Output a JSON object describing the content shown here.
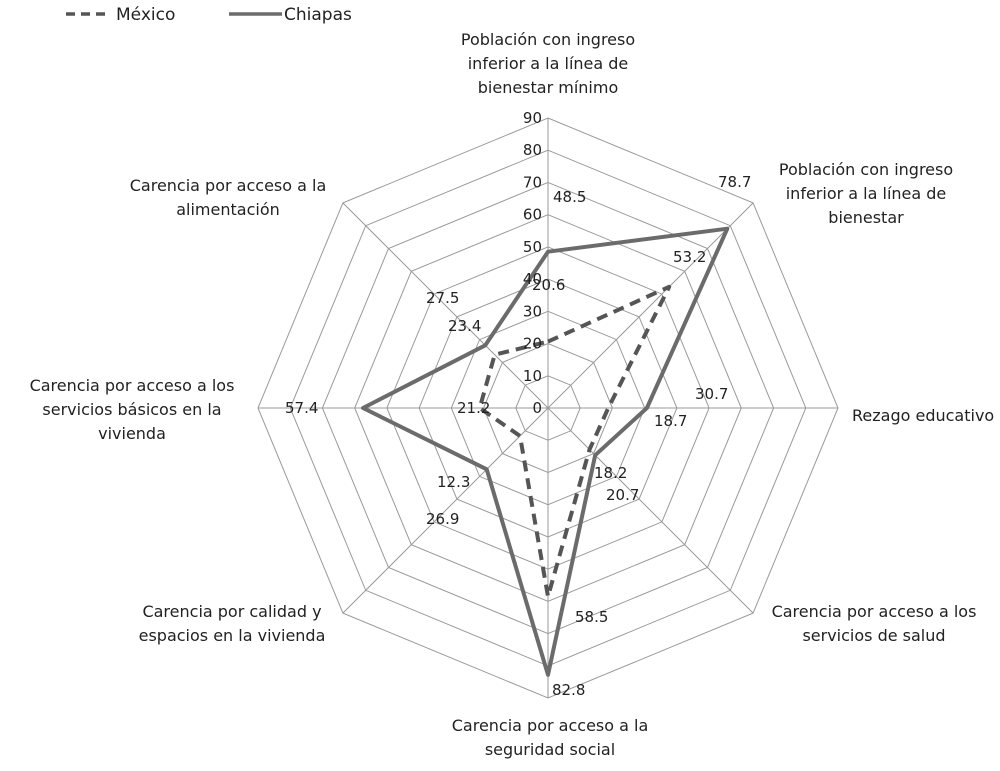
{
  "chart_data": {
    "type": "radar",
    "categories": [
      [
        "Población con ingreso",
        "inferior a la línea de",
        "bienestar mínimo"
      ],
      [
        "Población con ingreso",
        "inferior a la línea de",
        "bienestar"
      ],
      [
        "Rezago educativo"
      ],
      [
        "Carencia por acceso a los",
        "servicios de salud"
      ],
      [
        "Carencia por acceso a la",
        "seguridad social"
      ],
      [
        "Carencia por calidad y",
        "espacios en la vivienda"
      ],
      [
        "Carencia por acceso a los",
        "servicios básicos en la",
        "vivienda"
      ],
      [
        "Carencia por acceso a la",
        "alimentación"
      ]
    ],
    "series": [
      {
        "name": "México",
        "values": [
          20.6,
          53.2,
          18.7,
          18.2,
          58.5,
          12.3,
          21.2,
          23.4
        ],
        "color": "#555555",
        "dash": "dashed"
      },
      {
        "name": "Chiapas",
        "values": [
          48.5,
          78.7,
          30.7,
          20.7,
          82.8,
          26.9,
          57.4,
          27.5
        ],
        "color": "#6b6b6b",
        "dash": "solid"
      }
    ],
    "data_labels": {
      "México": [
        "20.6",
        "53.2",
        "18.7",
        "18.2",
        "58.5",
        "12.3",
        "21.2",
        "23.4"
      ],
      "Chiapas": [
        "48.5",
        "78.7",
        "30.7",
        "20.7",
        "82.8",
        "26.9",
        "57.4",
        "27.5"
      ]
    },
    "rlim": [
      0,
      90
    ],
    "ticks": [
      "0",
      "10",
      "20",
      "30",
      "40",
      "50",
      "60",
      "70",
      "80",
      "90"
    ],
    "legend_position": "top-left",
    "grid": true
  },
  "legend": {
    "items": [
      {
        "label": "México",
        "style": "dashed"
      },
      {
        "label": "Chiapas",
        "style": "solid"
      }
    ]
  }
}
